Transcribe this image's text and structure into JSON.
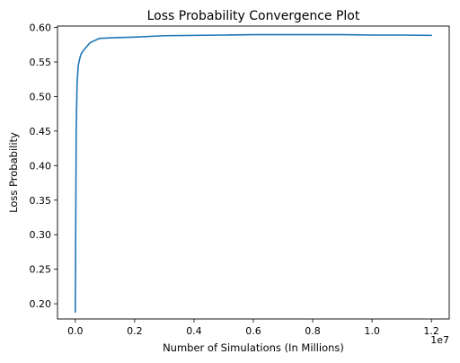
{
  "chart_data": {
    "type": "line",
    "title": "Loss Probability Convergence Plot",
    "xlabel": "Number of Simulations (In Millions)",
    "ylabel": "Loss Probability",
    "x_offset_label": "1e7",
    "xlim": [
      -0.06,
      1.26
    ],
    "ylim": [
      0.178,
      0.602
    ],
    "x_ticks": [
      0.0,
      0.2,
      0.4,
      0.6,
      0.8,
      1.0,
      1.2
    ],
    "x_tick_labels": [
      "0.0",
      "0.2",
      "0.4",
      "0.6",
      "0.8",
      "1.0",
      "1.2"
    ],
    "y_ticks": [
      0.2,
      0.25,
      0.3,
      0.35,
      0.4,
      0.45,
      0.5,
      0.55,
      0.6
    ],
    "y_tick_labels": [
      "0.20",
      "0.25",
      "0.30",
      "0.35",
      "0.40",
      "0.45",
      "0.50",
      "0.55",
      "0.60"
    ],
    "grid": false,
    "series": [
      {
        "color": "#1f77b4",
        "x": [
          0.0,
          0.003,
          0.006,
          0.01,
          0.015,
          0.02,
          0.03,
          0.05,
          0.08,
          0.12,
          0.2,
          0.3,
          0.4,
          0.5,
          0.6,
          0.7,
          0.8,
          0.9,
          1.0,
          1.1,
          1.2
        ],
        "y": [
          0.188,
          0.45,
          0.52,
          0.545,
          0.555,
          0.562,
          0.568,
          0.578,
          0.584,
          0.585,
          0.586,
          0.588,
          0.5885,
          0.589,
          0.5895,
          0.5895,
          0.5895,
          0.5895,
          0.589,
          0.589,
          0.5885
        ]
      }
    ]
  }
}
